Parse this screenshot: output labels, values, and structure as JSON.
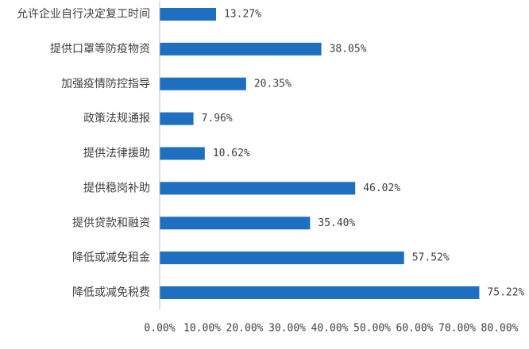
{
  "chart_data": {
    "type": "bar",
    "orientation": "horizontal",
    "categories": [
      "允许企业自行决定复工时间",
      "提供口罩等防疫物资",
      "加强疫情防控指导",
      "政策法规通报",
      "提供法律援助",
      "提供稳岗补助",
      "提供贷款和融资",
      "降低或减免租金",
      "降低或减免税费"
    ],
    "values": [
      13.27,
      38.05,
      20.35,
      7.96,
      10.62,
      46.02,
      35.4,
      57.52,
      75.22
    ],
    "value_labels": [
      "13.27%",
      "38.05%",
      "20.35%",
      "7.96%",
      "10.62%",
      "46.02%",
      "35.40%",
      "57.52%",
      "75.22%"
    ],
    "xlim": [
      0,
      80
    ],
    "x_ticks": [
      0,
      10,
      20,
      30,
      40,
      50,
      60,
      70,
      80
    ],
    "x_tick_labels": [
      "0.00%",
      "10.00%",
      "20.00%",
      "30.00%",
      "40.00%",
      "50.00%",
      "60.00%",
      "70.00%",
      "80.00%"
    ],
    "title": "",
    "xlabel": "",
    "ylabel": "",
    "grid": false,
    "legend": "none",
    "bar_color": "#1f6fc1",
    "text_color": "#404040"
  }
}
